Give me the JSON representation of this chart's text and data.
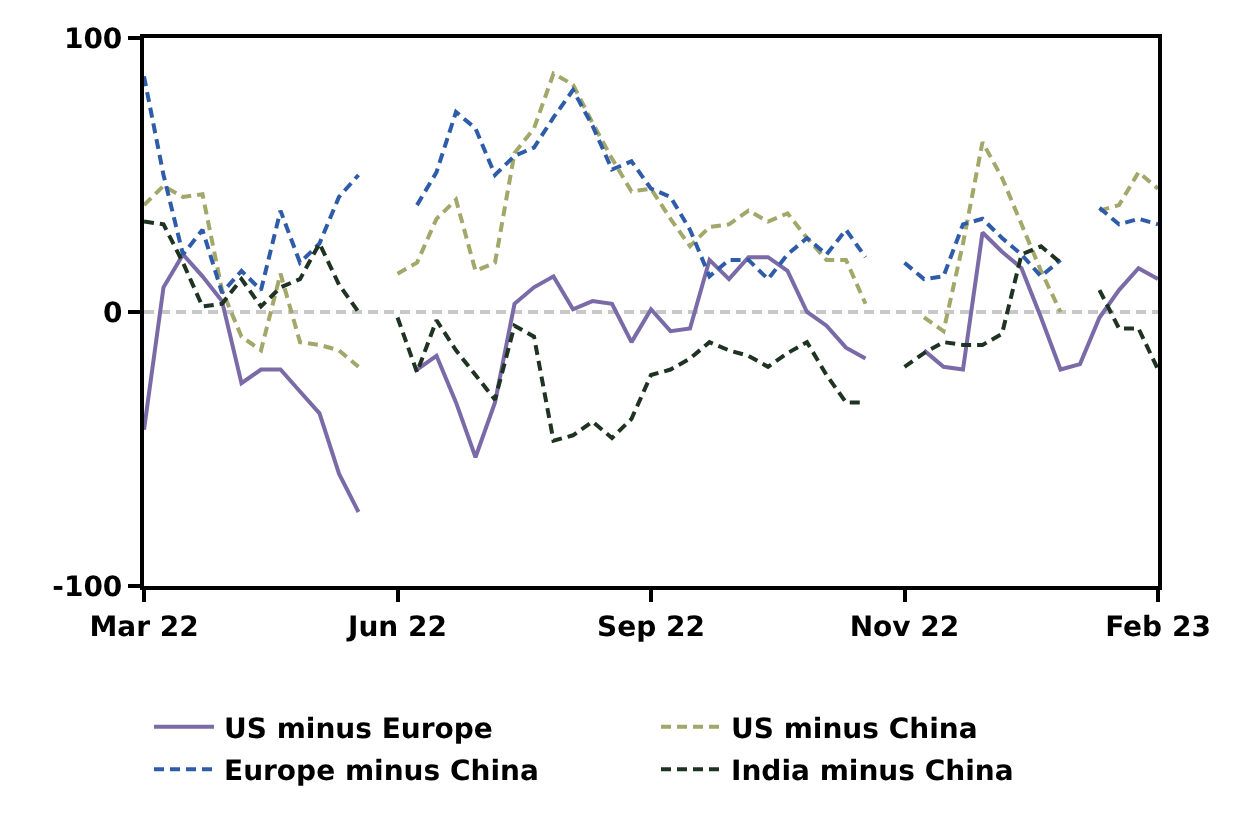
{
  "chart_data": {
    "type": "line",
    "categories": [
      "Mar 22",
      null,
      null,
      null,
      null,
      null,
      null,
      null,
      null,
      null,
      null,
      null,
      null,
      "Jun 22",
      null,
      null,
      null,
      null,
      null,
      null,
      null,
      null,
      null,
      null,
      null,
      null,
      "Sep 22",
      null,
      null,
      null,
      null,
      null,
      null,
      null,
      null,
      null,
      null,
      null,
      null,
      "Nov 22",
      null,
      null,
      null,
      null,
      null,
      null,
      null,
      null,
      null,
      null,
      null,
      null,
      "Feb 23"
    ],
    "ylim": [
      -100,
      100
    ],
    "yticks": [
      -100,
      0,
      100
    ],
    "grid": false,
    "legend": "bottom",
    "marker": "none",
    "ref_lines": [
      {
        "axis": "y",
        "value": 0,
        "label": null,
        "color": "#c8c8c8",
        "line_style": "dashed"
      }
    ],
    "series": [
      {
        "name": "US minus Europe",
        "color": "#7b6aa8",
        "line_style": "solid",
        "values": [
          -43,
          9,
          21,
          13,
          4,
          -26,
          -21,
          -21,
          -29,
          -37,
          -59,
          -73,
          null,
          null,
          -21,
          -16,
          -33,
          -53,
          -33,
          3,
          9,
          13,
          1,
          4,
          3,
          -11,
          1,
          -7,
          -6,
          19,
          12,
          20,
          20,
          15,
          0,
          -5,
          -13,
          -17,
          null,
          null,
          -14,
          -20,
          -21,
          29,
          22,
          16,
          -2,
          -21,
          -19,
          -2,
          8,
          16,
          12
        ]
      },
      {
        "name": "US minus China",
        "color": "#a3a76a",
        "line_style": "dashed",
        "values": [
          39,
          46,
          42,
          43,
          8,
          -9,
          -14,
          14,
          -11,
          -12,
          -14,
          -20,
          null,
          14,
          18,
          34,
          41,
          15,
          18,
          58,
          67,
          87,
          83,
          69,
          56,
          44,
          45,
          34,
          24,
          31,
          32,
          37,
          33,
          36,
          27,
          19,
          19,
          3,
          null,
          null,
          -2,
          -7,
          25,
          62,
          49,
          32,
          15,
          0,
          null,
          37,
          39,
          51,
          45
        ]
      },
      {
        "name": "Europe minus China",
        "color": "#2f5ca8",
        "line_style": "dashed",
        "values": [
          86,
          50,
          21,
          30,
          7,
          15,
          8,
          37,
          18,
          25,
          42,
          50,
          null,
          null,
          39,
          51,
          73,
          67,
          50,
          57,
          60,
          71,
          81,
          68,
          52,
          55,
          45,
          42,
          30,
          13,
          19,
          19,
          12,
          21,
          27,
          21,
          30,
          20,
          null,
          18,
          12,
          13,
          32,
          34,
          27,
          21,
          13,
          19,
          null,
          38,
          32,
          34,
          32
        ]
      },
      {
        "name": "India minus China",
        "color": "#1f3322",
        "line_style": "dashed",
        "values": [
          33,
          32,
          18,
          2,
          3,
          12,
          2,
          9,
          12,
          25,
          10,
          0,
          null,
          -2,
          -22,
          -3,
          -14,
          -23,
          -32,
          -5,
          -9,
          -47,
          -45,
          -40,
          -46,
          -39,
          -23,
          -21,
          -17,
          -11,
          -14,
          -16,
          -20,
          -15,
          -11,
          -23,
          -33,
          -33,
          null,
          -20,
          -15,
          -11,
          -12,
          -12,
          -8,
          21,
          24,
          18,
          null,
          8,
          -6,
          -6,
          -21
        ]
      }
    ]
  }
}
